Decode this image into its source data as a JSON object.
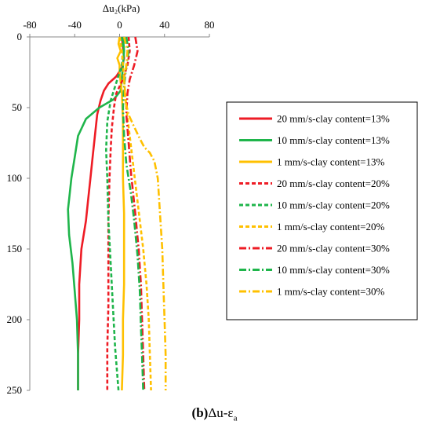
{
  "chart_data": {
    "type": "line",
    "title": "",
    "xlabel": "Δu₂(kPa)",
    "ylabel": "",
    "xlim": [
      -80,
      80
    ],
    "ylim": [
      0,
      250
    ],
    "y_inverted": true,
    "x_axis_position": "top",
    "xticks": [
      -80,
      -40,
      0,
      40,
      80
    ],
    "yticks": [
      0,
      50,
      100,
      150,
      200,
      250
    ],
    "grid": false,
    "legend_position": "right",
    "series": [
      {
        "name": "20 mm/s-clay content=13%",
        "color": "#ee1c25",
        "dash": "solid",
        "points": [
          [
            2,
            0
          ],
          [
            3,
            8
          ],
          [
            4,
            15
          ],
          [
            2,
            22
          ],
          [
            -3,
            28
          ],
          [
            -10,
            33
          ],
          [
            -14,
            38
          ],
          [
            -17,
            45
          ],
          [
            -20,
            55
          ],
          [
            -22,
            70
          ],
          [
            -24,
            85
          ],
          [
            -26,
            100
          ],
          [
            -28,
            115
          ],
          [
            -30,
            130
          ],
          [
            -34,
            150
          ],
          [
            -36,
            175
          ],
          [
            -36,
            200
          ],
          [
            -37,
            225
          ],
          [
            -37,
            250
          ]
        ]
      },
      {
        "name": "10 mm/s-clay content=13%",
        "color": "#1fb54b",
        "dash": "solid",
        "points": [
          [
            3,
            0
          ],
          [
            4,
            10
          ],
          [
            3,
            20
          ],
          [
            2,
            30
          ],
          [
            1,
            38
          ],
          [
            -5,
            44
          ],
          [
            -18,
            50
          ],
          [
            -30,
            58
          ],
          [
            -37,
            70
          ],
          [
            -40,
            85
          ],
          [
            -43,
            100
          ],
          [
            -45,
            115
          ],
          [
            -46,
            122
          ],
          [
            -45,
            140
          ],
          [
            -42,
            160
          ],
          [
            -40,
            180
          ],
          [
            -38,
            200
          ],
          [
            -37,
            225
          ],
          [
            -37,
            250
          ]
        ]
      },
      {
        "name": "1 mm/s-clay content=13%",
        "color": "#ffc000",
        "dash": "solid",
        "points": [
          [
            0,
            0
          ],
          [
            -1,
            5
          ],
          [
            1,
            10
          ],
          [
            -2,
            15
          ],
          [
            0,
            20
          ],
          [
            0,
            25
          ],
          [
            2,
            40
          ],
          [
            3,
            60
          ],
          [
            3,
            80
          ],
          [
            3,
            100
          ],
          [
            4,
            125
          ],
          [
            4,
            150
          ],
          [
            4,
            175
          ],
          [
            3,
            200
          ],
          [
            3,
            225
          ],
          [
            2,
            250
          ]
        ]
      },
      {
        "name": "20 mm/s-clay content=20%",
        "color": "#ee1c25",
        "dash": "dash",
        "points": [
          [
            8,
            0
          ],
          [
            9,
            10
          ],
          [
            7,
            20
          ],
          [
            3,
            30
          ],
          [
            -3,
            40
          ],
          [
            -5,
            50
          ],
          [
            -7,
            65
          ],
          [
            -8,
            80
          ],
          [
            -9,
            100
          ],
          [
            -10,
            130
          ],
          [
            -10,
            160
          ],
          [
            -10,
            190
          ],
          [
            -11,
            220
          ],
          [
            -11,
            250
          ]
        ]
      },
      {
        "name": "10 mm/s-clay content=20%",
        "color": "#1fb54b",
        "dash": "dash",
        "points": [
          [
            2,
            0
          ],
          [
            3,
            10
          ],
          [
            2,
            20
          ],
          [
            -2,
            30
          ],
          [
            -8,
            45
          ],
          [
            -11,
            60
          ],
          [
            -12,
            80
          ],
          [
            -11,
            100
          ],
          [
            -10,
            130
          ],
          [
            -8,
            160
          ],
          [
            -6,
            190
          ],
          [
            -4,
            220
          ],
          [
            -1,
            250
          ]
        ]
      },
      {
        "name": "1 mm/s-clay content=20%",
        "color": "#ffc000",
        "dash": "dash",
        "points": [
          [
            0,
            0
          ],
          [
            2,
            10
          ],
          [
            4,
            30
          ],
          [
            6,
            50
          ],
          [
            9,
            70
          ],
          [
            12,
            90
          ],
          [
            15,
            110
          ],
          [
            18,
            130
          ],
          [
            21,
            150
          ],
          [
            24,
            175
          ],
          [
            26,
            200
          ],
          [
            27,
            225
          ],
          [
            28,
            250
          ]
        ]
      },
      {
        "name": "20 mm/s-clay content=30%",
        "color": "#ee1c25",
        "dash": "dashdot",
        "points": [
          [
            14,
            0
          ],
          [
            16,
            10
          ],
          [
            13,
            20
          ],
          [
            9,
            30
          ],
          [
            7,
            40
          ],
          [
            6,
            55
          ],
          [
            8,
            75
          ],
          [
            10,
            95
          ],
          [
            14,
            125
          ],
          [
            17,
            150
          ],
          [
            19,
            175
          ],
          [
            20,
            200
          ],
          [
            21,
            225
          ],
          [
            22,
            250
          ]
        ]
      },
      {
        "name": "10 mm/s-clay content=30%",
        "color": "#1fb54b",
        "dash": "dashdot",
        "points": [
          [
            6,
            0
          ],
          [
            8,
            10
          ],
          [
            6,
            20
          ],
          [
            4,
            35
          ],
          [
            3,
            50
          ],
          [
            4,
            70
          ],
          [
            6,
            90
          ],
          [
            10,
            110
          ],
          [
            13,
            130
          ],
          [
            16,
            155
          ],
          [
            18,
            180
          ],
          [
            19,
            205
          ],
          [
            20,
            225
          ],
          [
            21,
            250
          ]
        ]
      },
      {
        "name": "1 mm/s-clay content=30%",
        "color": "#ffc000",
        "dash": "dashdot",
        "points": [
          [
            4,
            0
          ],
          [
            7,
            10
          ],
          [
            6,
            20
          ],
          [
            4,
            30
          ],
          [
            5,
            45
          ],
          [
            8,
            55
          ],
          [
            12,
            62
          ],
          [
            18,
            72
          ],
          [
            22,
            78
          ],
          [
            27,
            82
          ],
          [
            31,
            88
          ],
          [
            34,
            100
          ],
          [
            36,
            125
          ],
          [
            38,
            150
          ],
          [
            39,
            175
          ],
          [
            40,
            200
          ],
          [
            41,
            225
          ],
          [
            41,
            250
          ]
        ]
      }
    ]
  },
  "caption": {
    "part": "(b)",
    "text": "Δu-ε",
    "subscript": "a"
  }
}
